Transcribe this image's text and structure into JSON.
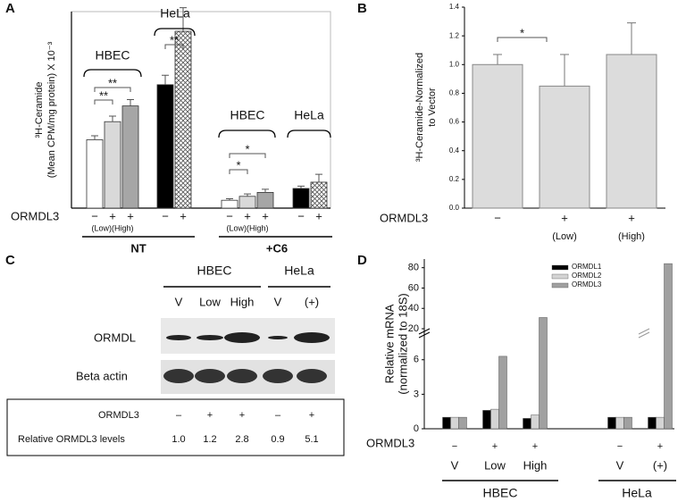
{
  "panel_labels": [
    "A",
    "B",
    "C",
    "D"
  ],
  "chart_data": [
    {
      "type": "bar",
      "y_label": [
        "³H-Ceramide",
        "(Mean CPM/mg protein) X 10⁻³"
      ],
      "x_label": "ORMDL3",
      "categories": [
        "−",
        "+",
        "+",
        "−",
        "+",
        "−",
        "+",
        "+",
        "−",
        "+"
      ],
      "values": [
        0.87,
        1.1,
        1.3,
        1.57,
        2.25,
        0.1,
        0.15,
        0.2,
        0.25,
        0.33
      ],
      "errors": [
        0.05,
        0.07,
        0.08,
        0.12,
        0.3,
        0.02,
        0.03,
        0.04,
        0.03,
        0.1
      ],
      "colors": [
        "#ffffff",
        "#d9d9d9",
        "#a6a6a6",
        "#000000",
        "crosshatch",
        "#ffffff",
        "#d9d9d9",
        "#a6a6a6",
        "#000000",
        "crosshatch"
      ],
      "ylim": [
        0,
        2.5
      ],
      "sublabels": [
        "(Low)(High)",
        "(Low)(High)"
      ],
      "groups": [
        "NT",
        "+C6"
      ],
      "cell_labels": [
        "HBEC",
        "HeLa",
        "HBEC",
        "HeLa"
      ],
      "significance": [
        "**",
        "**",
        "**",
        "*",
        "*"
      ]
    },
    {
      "type": "bar",
      "y_label": [
        "³H-Ceramide-Normalized",
        "to Vector"
      ],
      "x_label": "ORMDL3",
      "categories": [
        "−",
        "+",
        "+"
      ],
      "sublabels": [
        null,
        "(Low)",
        "(High)"
      ],
      "values": [
        1.0,
        0.85,
        1.07
      ],
      "errors": [
        0.07,
        0.22,
        0.22
      ],
      "color": "#dcdcdc",
      "ylim": [
        0,
        1.4
      ],
      "yticks": [
        {
          "value": 0,
          "label": "0.0"
        },
        0.2,
        0.4,
        0.6,
        0.8,
        {
          "value": 1,
          "label": "1.0"
        },
        1.2,
        1.4
      ],
      "significance": [
        "*"
      ]
    },
    {
      "type": "bar",
      "y_label": [
        "Relative mRNA",
        "(normalized to 18S)"
      ],
      "x_label": "ORMDL3",
      "categories": [
        "V",
        "Low",
        "High",
        "V",
        "(+)"
      ],
      "signs": [
        "−",
        "+",
        "+",
        "−",
        "+"
      ],
      "groups": [
        "HBEC",
        "HeLa"
      ],
      "series": [
        {
          "name": "ORMDL1",
          "color": "#000000",
          "values": [
            1.0,
            1.6,
            0.9,
            1.0,
            1.0
          ]
        },
        {
          "name": "ORMDL2",
          "color": "#d4d4d4",
          "values": [
            1.0,
            1.7,
            1.2,
            1.0,
            1.0
          ]
        },
        {
          "name": "ORMDL3",
          "color": "#a0a0a0",
          "values": [
            1.0,
            6.3,
            31,
            1.0,
            84
          ]
        }
      ],
      "ylim": [
        0,
        85
      ],
      "ybreak": [
        8,
        20
      ],
      "yticks": [
        0,
        3,
        6,
        20,
        40,
        60,
        80
      ],
      "legend": "top-right"
    }
  ],
  "panel_c": {
    "groups": [
      "HBEC",
      "HeLa"
    ],
    "lanes": [
      "V",
      "Low",
      "High",
      "V",
      "(+)"
    ],
    "blot_rows": [
      "ORMDL",
      "Beta actin"
    ],
    "table": {
      "rows": [
        [
          "ORMDL3",
          "–",
          "+",
          "+",
          "–",
          "+"
        ],
        [
          "Relative ORMDL3 levels",
          "1.0",
          "1.2",
          "2.8",
          "0.9",
          "5.1"
        ]
      ]
    }
  }
}
